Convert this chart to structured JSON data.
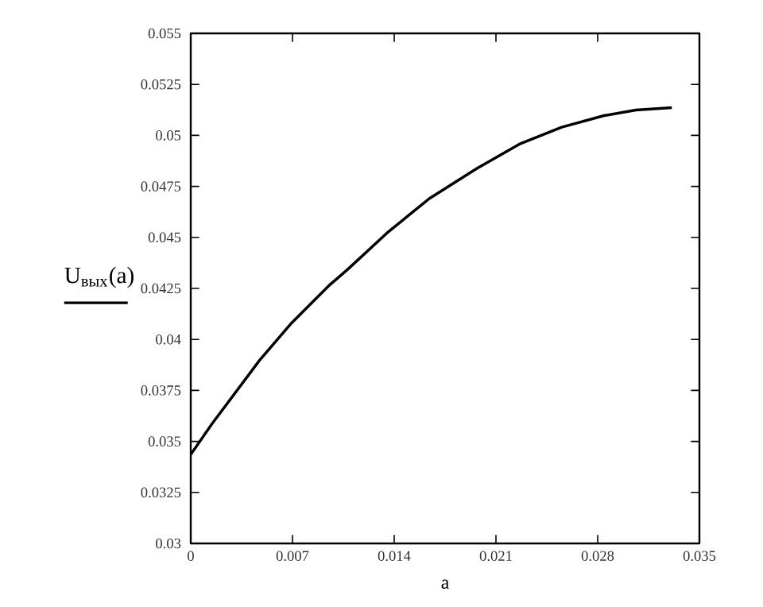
{
  "chart_data": {
    "type": "line",
    "xlabel": "a",
    "ylabel": "U$_{вых}$(a)",
    "xlim": [
      0,
      0.035
    ],
    "ylim": [
      0.03,
      0.055
    ],
    "xticks": [
      0,
      0.007,
      0.014,
      0.021,
      0.028,
      0.035
    ],
    "yticks": [
      0.03,
      0.0325,
      0.035,
      0.0375,
      0.04,
      0.0425,
      0.045,
      0.0475,
      0.05,
      0.0525,
      0.055
    ],
    "grid": false,
    "marker": "none",
    "line_style": "solid",
    "series": [
      {
        "color": "#000000",
        "x": [
          0,
          0.00146,
          0.00474,
          0.00693,
          0.00948,
          0.01075,
          0.01349,
          0.01641,
          0.01969,
          0.02261,
          0.02552,
          0.02844,
          0.03063,
          0.0331
        ],
        "values": [
          0.03436,
          0.03586,
          0.03898,
          0.0408,
          0.04262,
          0.0434,
          0.04521,
          0.0469,
          0.04838,
          0.04957,
          0.0504,
          0.05097,
          0.05124,
          0.05136
        ]
      }
    ]
  }
}
